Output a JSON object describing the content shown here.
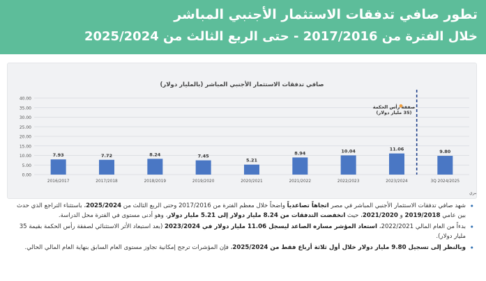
{
  "header": {
    "title": "تطور صافي تدفقات الاستثمار الأجنبي المباشر",
    "subtitle": "خلال الفترة من 2017/2016 - حتى الربع الثالث من 2025/2024"
  },
  "chart_data": {
    "type": "bar",
    "title": "صافي تدفقات الاستثمار الأجنبي المباشر (بالمليار دولار)",
    "categories": [
      "2016/2017",
      "2017/2018",
      "2018/2019",
      "2019/2020",
      "2020/2021",
      "2021/2022",
      "2022/2023",
      "2023/2024",
      "3Q 2024/2025"
    ],
    "values": [
      7.93,
      7.72,
      8.24,
      7.45,
      5.21,
      8.94,
      10.04,
      11.06,
      9.8
    ],
    "value_labels": [
      "7.93",
      "7.72",
      "8.24",
      "7.45",
      "5.21",
      "8.94",
      "10.04",
      "11.06",
      "9.80"
    ],
    "ylim": [
      0,
      40
    ],
    "yticks": [
      "0.00",
      "5.00",
      "10.00",
      "15.00",
      "20.00",
      "25.00",
      "30.00",
      "35.00",
      "40.00"
    ],
    "bar_color": "#4a77c4",
    "annotation": {
      "line1": "صفقة رأس الحكمة",
      "line2": "(35 مليار دولار)",
      "marker_color": "#f0a040"
    },
    "source": "المصدر: البنك المركزي المصري",
    "grid": true
  },
  "bullets": [
    {
      "parts": [
        {
          "t": "شهد صافي تدفقات الاستثمار الأجنبي المباشر في مصر ",
          "b": false
        },
        {
          "t": "اتجاهاً تصاعدياً",
          "b": true
        },
        {
          "t": " واضحاً خلال معظم الفترة من 2017/2016 وحتى الربع الثالث من ",
          "b": false
        },
        {
          "t": "2025/2024",
          "b": true
        },
        {
          "t": "، باستثناء التراجع الذي حدث بين عامي ",
          "b": false
        },
        {
          "t": "2019/2018",
          "b": true
        },
        {
          "t": " و ",
          "b": false
        },
        {
          "t": "2021/2020",
          "b": true
        },
        {
          "t": "، حيث ",
          "b": false
        },
        {
          "t": "انخفضت التدفقات من 8.24 مليار دولار إلى 5.21 مليار دولار",
          "b": true
        },
        {
          "t": "، وهو أدنى مستوى في الفترة محل الدراسة.",
          "b": false
        }
      ]
    },
    {
      "parts": [
        {
          "t": "بدءاً من العام المالي 2022/2021، ",
          "b": false
        },
        {
          "t": "استعاد المؤشر مساره الصاعد ليسجل 11.06 مليار دولار في 2023/2024",
          "b": true
        },
        {
          "t": " (بعد استبعاد الأثر الاستثنائي لصفقة رأس الحكمة بقيمة 35 مليار دولار).",
          "b": false
        }
      ]
    },
    {
      "parts": [
        {
          "t": "وبالنظر إلى تسجيل 9.80 مليار دولار خلال أول ثلاثة أرباع فقط من 2025/2024",
          "b": true
        },
        {
          "t": "، فإن المؤشرات ترجح إمكانية تجاوز مستوى العام السابق بنهاية العام المالي الحالي.",
          "b": false
        }
      ]
    }
  ]
}
